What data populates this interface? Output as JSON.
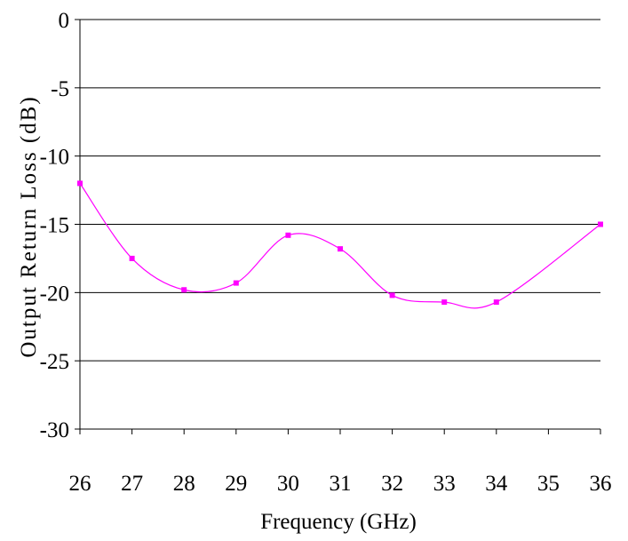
{
  "chart_data": {
    "type": "line",
    "title": "",
    "xlabel": "Frequency (GHz)",
    "ylabel": "Output Return Loss (dB)",
    "xlim": [
      26,
      36
    ],
    "ylim": [
      -30,
      0
    ],
    "x_ticks": [
      26,
      27,
      28,
      29,
      30,
      31,
      32,
      33,
      34,
      35,
      36
    ],
    "y_ticks": [
      0,
      -5,
      -10,
      -15,
      -20,
      -25,
      -30
    ],
    "x_tick_labels": [
      "26",
      "27",
      "28",
      "29",
      "30",
      "31",
      "32",
      "33",
      "34",
      "35",
      "36"
    ],
    "y_tick_labels": [
      "0",
      "-5",
      "-10",
      "-15",
      "-20",
      "-25",
      "-30"
    ],
    "grid": "horizontal",
    "legend": "none",
    "series": [
      {
        "color": "#ff00ff",
        "marker": "square",
        "smooth": true,
        "x": [
          26,
          27,
          28,
          29,
          30,
          31,
          32,
          33,
          34,
          36
        ],
        "y": [
          -12.0,
          -17.5,
          -19.8,
          -19.3,
          -15.8,
          -16.8,
          -20.2,
          -20.7,
          -20.7,
          -15.0
        ]
      }
    ]
  }
}
